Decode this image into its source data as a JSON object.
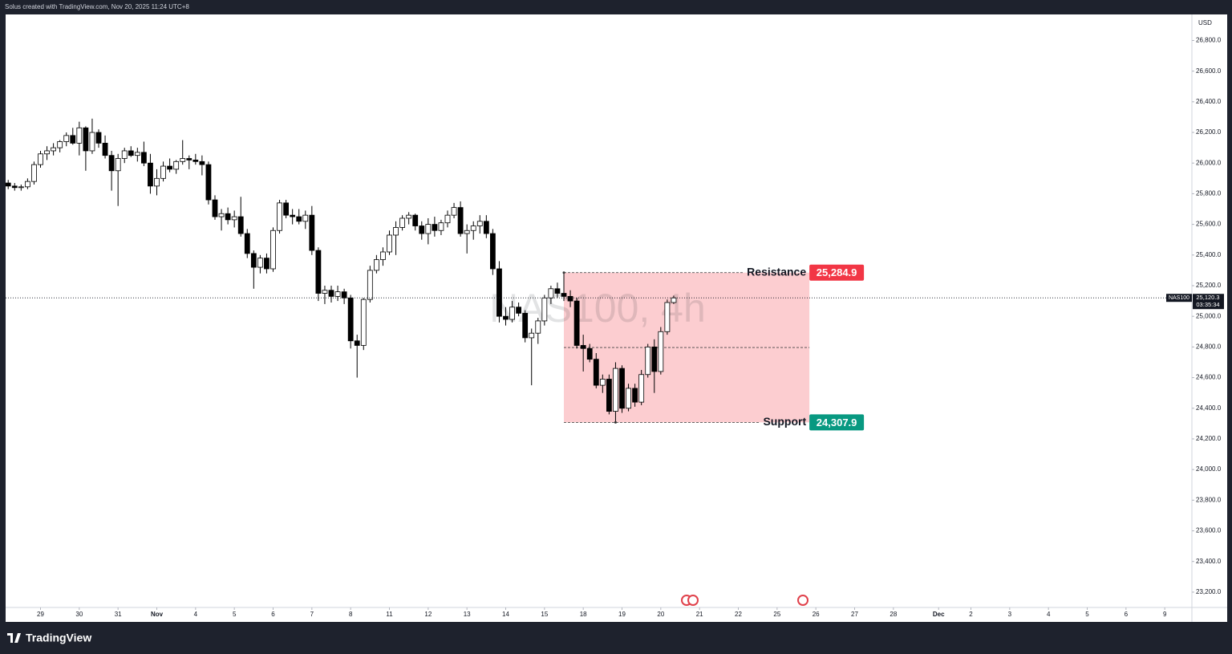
{
  "header": {
    "text": "Solus created with TradingView.com, Nov 20, 2025 11:24 UTC+8"
  },
  "footer": {
    "brand": "TradingView"
  },
  "chart_data": {
    "type": "candlestick",
    "watermark": "NAS100, 4h",
    "currency": "USD",
    "up_color": "#ffffff",
    "down_color": "#000000",
    "ylim": [
      23100,
      26970
    ],
    "xlim": [
      -0.4,
      183.2
    ],
    "yticks": [
      {
        "value": 23200,
        "label": "23,200.0"
      },
      {
        "value": 23400,
        "label": "23,400.0"
      },
      {
        "value": 23600,
        "label": "23,600.0"
      },
      {
        "value": 23800,
        "label": "23,800.0"
      },
      {
        "value": 24000,
        "label": "24,000.0"
      },
      {
        "value": 24200,
        "label": "24,200.0"
      },
      {
        "value": 24400,
        "label": "24,400.0"
      },
      {
        "value": 24600,
        "label": "24,600.0"
      },
      {
        "value": 24800,
        "label": "24,800.0"
      },
      {
        "value": 25000,
        "label": "25,000.0"
      },
      {
        "value": 25200,
        "label": "25,200.0"
      },
      {
        "value": 25400,
        "label": "25,400.0"
      },
      {
        "value": 25600,
        "label": "25,600.0"
      },
      {
        "value": 25800,
        "label": "25,800.0"
      },
      {
        "value": 26000,
        "label": "26,000.0"
      },
      {
        "value": 26200,
        "label": "26,200.0"
      },
      {
        "value": 26400,
        "label": "26,400.0"
      },
      {
        "value": 26600,
        "label": "26,600.0"
      },
      {
        "value": 26800,
        "label": "26,800.0"
      }
    ],
    "xticks": [
      {
        "value": 5,
        "label": "29"
      },
      {
        "value": 11,
        "label": "30"
      },
      {
        "value": 17,
        "label": "31"
      },
      {
        "value": 23,
        "label": "Nov"
      },
      {
        "value": 29,
        "label": "4"
      },
      {
        "value": 35,
        "label": "5"
      },
      {
        "value": 41,
        "label": "6"
      },
      {
        "value": 47,
        "label": "7"
      },
      {
        "value": 53,
        "label": "8"
      },
      {
        "value": 59,
        "label": "11"
      },
      {
        "value": 65,
        "label": "12"
      },
      {
        "value": 71,
        "label": "13"
      },
      {
        "value": 77,
        "label": "14"
      },
      {
        "value": 83,
        "label": "15"
      },
      {
        "value": 89,
        "label": "18"
      },
      {
        "value": 95,
        "label": "19"
      },
      {
        "value": 101,
        "label": "20"
      },
      {
        "value": 107,
        "label": "21"
      },
      {
        "value": 113,
        "label": "22"
      },
      {
        "value": 119,
        "label": "25"
      },
      {
        "value": 125,
        "label": "26"
      },
      {
        "value": 131,
        "label": "27"
      },
      {
        "value": 137,
        "label": "28"
      },
      {
        "value": 144,
        "label": "Dec"
      },
      {
        "value": 149,
        "label": "2"
      },
      {
        "value": 155,
        "label": "3"
      },
      {
        "value": 161,
        "label": "4"
      },
      {
        "value": 167,
        "label": "5"
      },
      {
        "value": 173,
        "label": "6"
      },
      {
        "value": 179,
        "label": "9"
      }
    ],
    "open": [
      25870,
      25850,
      25840,
      25845,
      25880,
      25990,
      26060,
      26080,
      26100,
      26140,
      26180,
      26130,
      26230,
      26080,
      26200,
      26130,
      26050,
      25950,
      26030,
      26080,
      26050,
      26070,
      26000,
      25850,
      25900,
      25980,
      25960,
      26010,
      26030,
      26020,
      26010,
      25990,
      25760,
      25650,
      25670,
      25630,
      25650,
      25540,
      25410,
      25320,
      25380,
      25310,
      25560,
      25740,
      25660,
      25650,
      25620,
      25660,
      25430,
      25150,
      25170,
      25130,
      25160,
      25120,
      24840,
      24810,
      25110,
      25300,
      25370,
      25420,
      25530,
      25580,
      25640,
      25660,
      25590,
      25540,
      25600,
      25560,
      25610,
      25660,
      25710,
      25540,
      25560,
      25590,
      25620,
      25540,
      25310,
      25000,
      24980,
      25060,
      25020,
      24860,
      24890,
      24970,
      25120,
      25180,
      25150,
      25130,
      25100,
      24810,
      24790,
      24720,
      24550,
      24590,
      24380,
      24660,
      24400,
      24530,
      24440,
      24620,
      24800,
      24640,
      24900,
      25090
    ],
    "high": [
      25890,
      25870,
      25860,
      25900,
      26010,
      26080,
      26110,
      26130,
      26150,
      26200,
      26230,
      26270,
      26240,
      26290,
      26220,
      26180,
      26080,
      26060,
      26100,
      26110,
      26100,
      26140,
      26060,
      25960,
      26010,
      26030,
      26020,
      26150,
      26050,
      26060,
      26050,
      26010,
      25790,
      25700,
      25710,
      25690,
      25780,
      25570,
      25430,
      25400,
      25410,
      25580,
      25760,
      25760,
      25700,
      25700,
      25690,
      25720,
      25450,
      25200,
      25200,
      25200,
      25180,
      25140,
      24880,
      25120,
      25330,
      25400,
      25450,
      25560,
      25620,
      25660,
      25680,
      25670,
      25620,
      25640,
      25650,
      25630,
      25690,
      25740,
      25750,
      25600,
      25620,
      25660,
      25660,
      25570,
      25360,
      25060,
      25100,
      25090,
      25040,
      24920,
      24990,
      25140,
      25200,
      25220,
      25284.9,
      25170,
      25120,
      24880,
      24820,
      24760,
      24620,
      24620,
      24700,
      24680,
      24560,
      24560,
      24650,
      24820,
      24850,
      24930,
      25110,
      25135
    ],
    "low": [
      25830,
      25820,
      25820,
      25830,
      25860,
      25970,
      26020,
      26050,
      26070,
      26110,
      26120,
      26050,
      25950,
      26060,
      26100,
      26030,
      25820,
      25720,
      26000,
      26040,
      26010,
      25980,
      25800,
      25790,
      25880,
      25940,
      25930,
      25990,
      25960,
      25990,
      25920,
      25730,
      25630,
      25560,
      25600,
      25580,
      25520,
      25380,
      25180,
      25280,
      25280,
      25290,
      25540,
      25640,
      25600,
      25600,
      25570,
      25400,
      25100,
      25080,
      25090,
      25100,
      25080,
      24790,
      24600,
      24780,
      25090,
      25280,
      25330,
      25400,
      25400,
      25560,
      25600,
      25560,
      25500,
      25470,
      25520,
      25530,
      25580,
      25640,
      25520,
      25410,
      25500,
      25540,
      25510,
      25270,
      24960,
      24940,
      24960,
      25000,
      24830,
      24550,
      24820,
      24940,
      25080,
      25120,
      25100,
      25060,
      24790,
      24640,
      24700,
      24530,
      24500,
      24360,
      24307.9,
      24370,
      24380,
      24410,
      24420,
      24600,
      24500,
      24620,
      24880,
      25080
    ],
    "close": [
      25850,
      25840,
      25845,
      25880,
      25990,
      26060,
      26080,
      26100,
      26140,
      26180,
      26130,
      26230,
      26080,
      26200,
      26130,
      26050,
      25950,
      26030,
      26080,
      26050,
      26070,
      26000,
      25850,
      25900,
      25980,
      25960,
      26010,
      26030,
      26020,
      26010,
      25990,
      25760,
      25650,
      25670,
      25630,
      25650,
      25540,
      25410,
      25320,
      25380,
      25310,
      25560,
      25740,
      25660,
      25650,
      25620,
      25660,
      25430,
      25150,
      25170,
      25130,
      25160,
      25120,
      24840,
      24810,
      25110,
      25300,
      25370,
      25420,
      25530,
      25580,
      25640,
      25660,
      25590,
      25540,
      25600,
      25560,
      25610,
      25660,
      25710,
      25540,
      25560,
      25590,
      25620,
      25540,
      25310,
      25000,
      24980,
      25060,
      25020,
      24860,
      24890,
      24970,
      25120,
      25180,
      25150,
      25130,
      25100,
      24810,
      24790,
      24720,
      24550,
      24590,
      24380,
      24660,
      24400,
      24530,
      24440,
      24620,
      24800,
      24640,
      24900,
      25090,
      25120.3
    ],
    "annotations": [
      {
        "text": "Resistance",
        "value": 25284.9,
        "label": "25,284.9",
        "color": "#f23645",
        "x_start": 86,
        "x_end": 124
      },
      {
        "text": "Support",
        "value": 24307.9,
        "label": "24,307.9",
        "color": "#089981",
        "x_start": 86,
        "x_end": 124
      }
    ],
    "range_fill": "rgba(242,54,69,0.25)",
    "current_price": {
      "symbol": "NAS100",
      "value": 25120.3,
      "label": "25,120.3",
      "countdown": "03:35:34"
    }
  }
}
